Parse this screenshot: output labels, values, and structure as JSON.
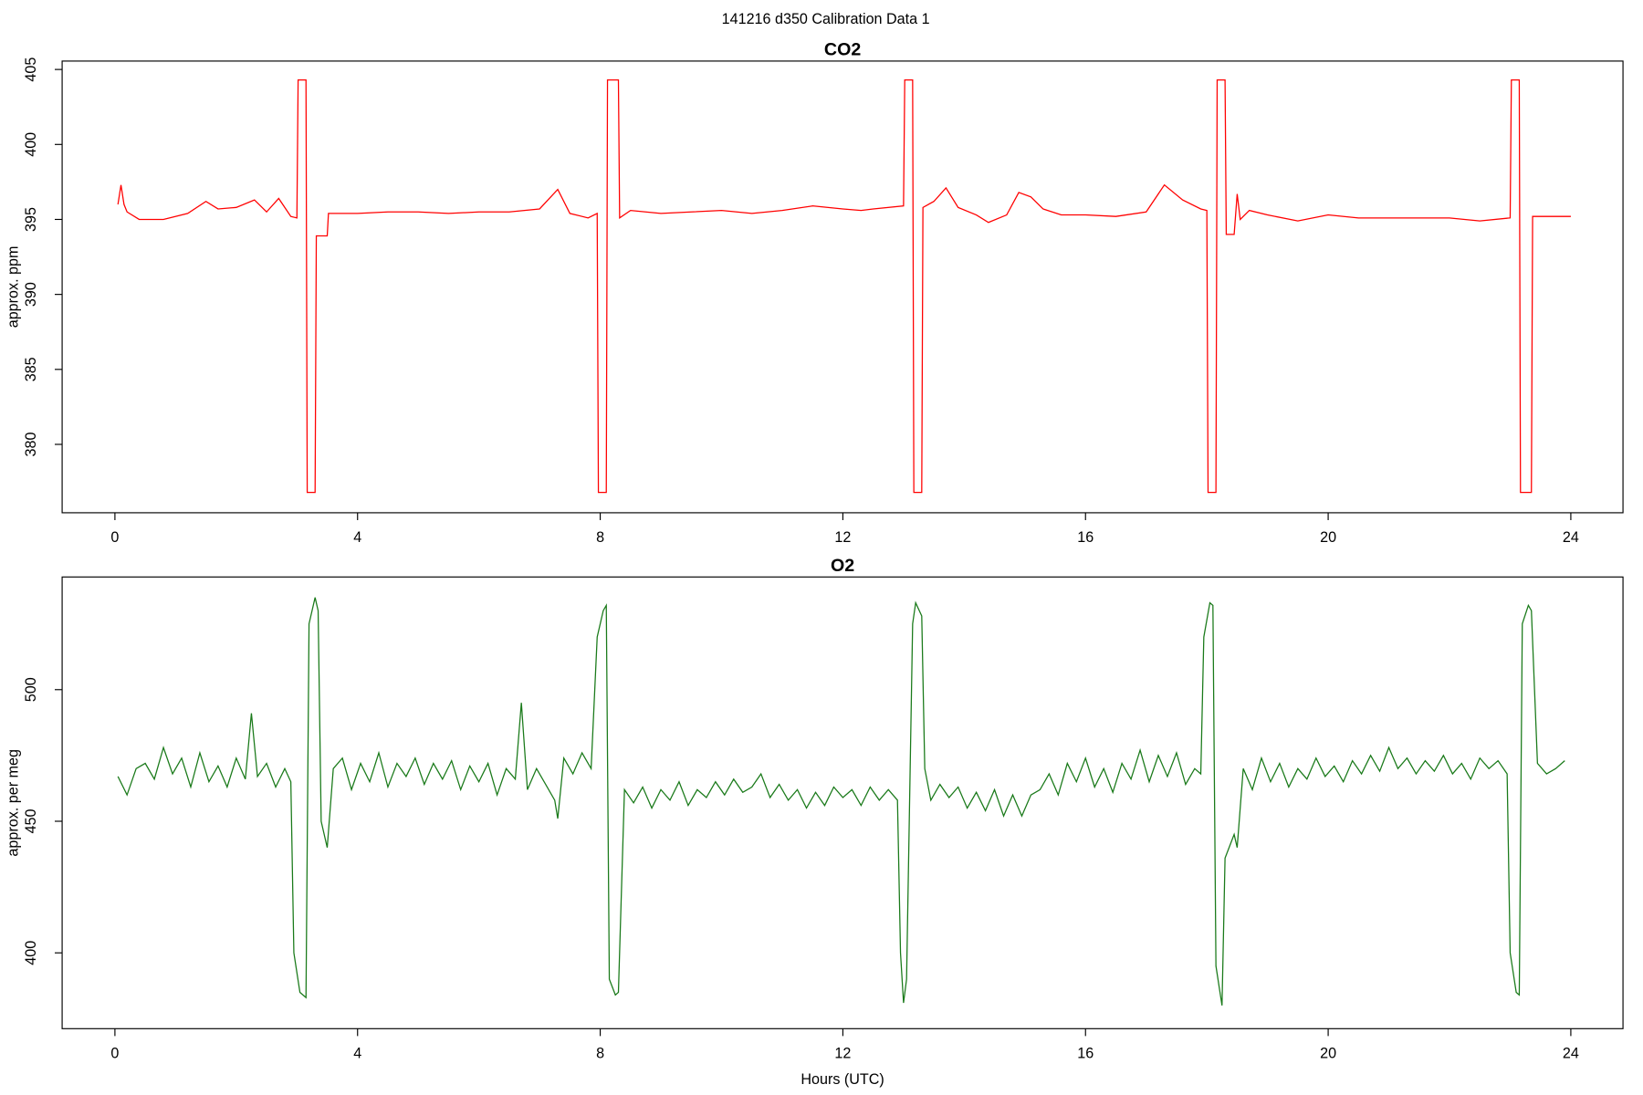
{
  "title": "141216   d350   Calibration Data 1",
  "chart_data": [
    {
      "type": "line",
      "title": "CO2",
      "ylabel": "approx. ppm",
      "color": "#ff0000",
      "xlim": [
        -0.87,
        24.86
      ],
      "xticks": [
        0,
        4,
        8,
        12,
        16,
        20,
        24
      ],
      "ylim": [
        375.44,
        405.56
      ],
      "yticks": [
        380,
        385,
        390,
        395,
        400,
        405
      ],
      "x": [
        0.05,
        0.1,
        0.15,
        0.2,
        0.4,
        0.8,
        1.2,
        1.5,
        1.7,
        2.0,
        2.3,
        2.5,
        2.7,
        2.9,
        3.0,
        3.02,
        3.15,
        3.17,
        3.3,
        3.32,
        3.5,
        3.52,
        4,
        4.5,
        5,
        5.5,
        6,
        6.5,
        7,
        7.3,
        7.5,
        7.8,
        7.95,
        7.97,
        8.1,
        8.12,
        8.3,
        8.32,
        8.5,
        9,
        9.5,
        10,
        10.5,
        11,
        11.5,
        12,
        12.3,
        12.5,
        13,
        13.02,
        13.15,
        13.17,
        13.3,
        13.32,
        13.5,
        13.7,
        13.9,
        14.2,
        14.4,
        14.7,
        14.9,
        15.1,
        15.3,
        15.6,
        16,
        16.5,
        17,
        17.3,
        17.6,
        17.9,
        18.0,
        18.02,
        18.15,
        18.17,
        18.3,
        18.32,
        18.45,
        18.5,
        18.55,
        18.7,
        19,
        19.5,
        20,
        20.5,
        21,
        21.5,
        22,
        22.5,
        23,
        23.02,
        23.15,
        23.17,
        23.35,
        23.37,
        24
      ],
      "values": [
        396,
        397.3,
        396.0,
        395.5,
        395.0,
        395.0,
        395.4,
        396.2,
        395.7,
        395.8,
        396.3,
        395.5,
        396.4,
        395.2,
        395.1,
        404.3,
        404.3,
        376.8,
        376.8,
        393.9,
        393.9,
        395.4,
        395.4,
        395.5,
        395.5,
        395.4,
        395.5,
        395.5,
        395.7,
        397.0,
        395.4,
        395.1,
        395.4,
        376.8,
        376.8,
        404.3,
        404.3,
        395.1,
        395.6,
        395.4,
        395.5,
        395.6,
        395.4,
        395.6,
        395.9,
        395.7,
        395.6,
        395.7,
        395.9,
        404.3,
        404.3,
        376.8,
        376.8,
        395.8,
        396.2,
        397.1,
        395.8,
        395.3,
        394.8,
        395.3,
        396.8,
        396.5,
        395.7,
        395.3,
        395.3,
        395.2,
        395.5,
        397.3,
        396.3,
        395.7,
        395.6,
        376.8,
        376.8,
        404.3,
        404.3,
        394.0,
        394.0,
        396.7,
        395.0,
        395.6,
        395.3,
        394.9,
        395.3,
        395.1,
        395.1,
        395.1,
        395.1,
        394.9,
        395.1,
        404.3,
        404.3,
        376.8,
        376.8,
        395.2,
        395.2
      ]
    },
    {
      "type": "line",
      "title": "O2",
      "ylabel": "approx. per meg",
      "xlabel": "Hours (UTC)",
      "color": "#1a7a1a",
      "xlim": [
        -0.87,
        24.86
      ],
      "xticks": [
        0,
        4,
        8,
        12,
        16,
        20,
        24
      ],
      "ylim": [
        371.2,
        542.8
      ],
      "yticks": [
        400,
        450,
        500
      ],
      "x": [
        0.05,
        0.2,
        0.35,
        0.5,
        0.65,
        0.8,
        0.95,
        1.1,
        1.25,
        1.4,
        1.55,
        1.7,
        1.85,
        2.0,
        2.15,
        2.25,
        2.35,
        2.5,
        2.65,
        2.8,
        2.9,
        2.95,
        3.05,
        3.15,
        3.2,
        3.3,
        3.35,
        3.4,
        3.5,
        3.6,
        3.75,
        3.9,
        4.05,
        4.2,
        4.35,
        4.5,
        4.65,
        4.8,
        4.95,
        5.1,
        5.25,
        5.4,
        5.55,
        5.7,
        5.85,
        6.0,
        6.15,
        6.3,
        6.45,
        6.6,
        6.7,
        6.8,
        6.95,
        7.1,
        7.25,
        7.3,
        7.4,
        7.55,
        7.7,
        7.85,
        7.95,
        8.05,
        8.1,
        8.15,
        8.25,
        8.3,
        8.4,
        8.55,
        8.7,
        8.85,
        9.0,
        9.15,
        9.3,
        9.45,
        9.6,
        9.75,
        9.9,
        10.05,
        10.2,
        10.35,
        10.5,
        10.65,
        10.8,
        10.95,
        11.1,
        11.25,
        11.4,
        11.55,
        11.7,
        11.85,
        12.0,
        12.15,
        12.3,
        12.45,
        12.6,
        12.75,
        12.9,
        12.95,
        13.0,
        13.05,
        13.15,
        13.2,
        13.3,
        13.35,
        13.45,
        13.6,
        13.75,
        13.9,
        14.05,
        14.2,
        14.35,
        14.5,
        14.65,
        14.8,
        14.95,
        15.1,
        15.25,
        15.4,
        15.55,
        15.7,
        15.85,
        16.0,
        16.15,
        16.3,
        16.45,
        16.6,
        16.75,
        16.9,
        17.05,
        17.2,
        17.35,
        17.5,
        17.65,
        17.8,
        17.9,
        17.95,
        18.05,
        18.1,
        18.15,
        18.25,
        18.3,
        18.45,
        18.5,
        18.6,
        18.75,
        18.9,
        19.05,
        19.2,
        19.35,
        19.5,
        19.65,
        19.8,
        19.95,
        20.1,
        20.25,
        20.4,
        20.55,
        20.7,
        20.85,
        21.0,
        21.15,
        21.3,
        21.45,
        21.6,
        21.75,
        21.9,
        22.05,
        22.2,
        22.35,
        22.5,
        22.65,
        22.8,
        22.95,
        23.0,
        23.1,
        23.15,
        23.2,
        23.3,
        23.35,
        23.45,
        23.6,
        23.75,
        23.9
      ],
      "values": [
        467,
        460,
        470,
        472,
        466,
        478,
        468,
        474,
        463,
        476,
        465,
        471,
        463,
        474,
        466,
        491,
        467,
        472,
        463,
        470,
        465,
        400,
        385,
        383,
        525,
        535,
        530,
        450,
        440,
        470,
        474,
        462,
        472,
        465,
        476,
        463,
        472,
        467,
        474,
        464,
        472,
        466,
        473,
        462,
        471,
        465,
        472,
        460,
        470,
        466,
        495,
        462,
        470,
        464,
        458,
        451,
        474,
        468,
        476,
        470,
        520,
        530,
        532,
        390,
        384,
        385,
        462,
        457,
        463,
        455,
        462,
        458,
        465,
        456,
        462,
        459,
        465,
        460,
        466,
        461,
        463,
        468,
        459,
        464,
        458,
        462,
        455,
        461,
        456,
        463,
        459,
        462,
        456,
        463,
        458,
        462,
        458,
        400,
        381,
        390,
        525,
        533,
        528,
        470,
        458,
        464,
        459,
        463,
        455,
        461,
        454,
        462,
        452,
        460,
        452,
        460,
        462,
        468,
        460,
        472,
        465,
        474,
        463,
        470,
        461,
        472,
        466,
        477,
        465,
        475,
        467,
        476,
        464,
        470,
        468,
        520,
        533,
        532,
        395,
        380,
        436,
        445,
        440,
        470,
        462,
        474,
        465,
        472,
        463,
        470,
        466,
        474,
        467,
        471,
        465,
        473,
        468,
        475,
        469,
        478,
        470,
        474,
        468,
        473,
        469,
        475,
        468,
        472,
        466,
        474,
        470,
        473,
        468,
        400,
        385,
        384,
        525,
        532,
        530,
        472,
        468,
        470,
        473
      ]
    }
  ]
}
